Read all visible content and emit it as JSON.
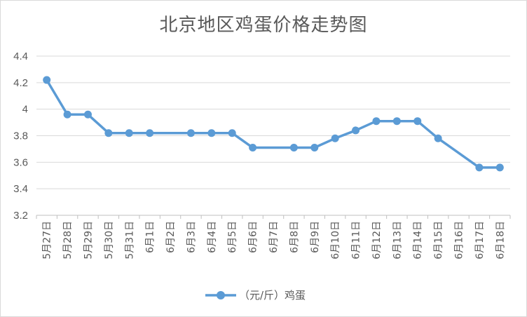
{
  "chart_data": {
    "type": "line",
    "title": "北京地区鸡蛋价格走势图",
    "categories": [
      "5月27日",
      "5月28日",
      "5月29日",
      "5月30日",
      "5月31日",
      "6月1日",
      "6月2日",
      "6月3日",
      "6月4日",
      "6月5日",
      "6月6日",
      "6月7日",
      "6月8日",
      "6月9日",
      "6月10日",
      "6月11日",
      "6月12日",
      "6月13日",
      "6月14日",
      "6月15日",
      "6月16日",
      "6月17日",
      "6月18日"
    ],
    "series": [
      {
        "name": "（元/斤）鸡蛋",
        "color": "#5b9bd5",
        "points": [
          {
            "x": "5月27日",
            "y": 4.22
          },
          {
            "x": "5月28日",
            "y": 3.96
          },
          {
            "x": "5月29日",
            "y": 3.96
          },
          {
            "x": "5月30日",
            "y": 3.82
          },
          {
            "x": "5月31日",
            "y": 3.82
          },
          {
            "x": "6月1日",
            "y": 3.82
          },
          {
            "x": "6月3日",
            "y": 3.82
          },
          {
            "x": "6月4日",
            "y": 3.82
          },
          {
            "x": "6月5日",
            "y": 3.82
          },
          {
            "x": "6月6日",
            "y": 3.71
          },
          {
            "x": "6月8日",
            "y": 3.71
          },
          {
            "x": "6月9日",
            "y": 3.71
          },
          {
            "x": "6月10日",
            "y": 3.78
          },
          {
            "x": "6月11日",
            "y": 3.84
          },
          {
            "x": "6月12日",
            "y": 3.91
          },
          {
            "x": "6月13日",
            "y": 3.91
          },
          {
            "x": "6月14日",
            "y": 3.91
          },
          {
            "x": "6月15日",
            "y": 3.78
          },
          {
            "x": "6月17日",
            "y": 3.56
          },
          {
            "x": "6月18日",
            "y": 3.56
          }
        ]
      }
    ],
    "ylim": [
      3.2,
      4.4
    ],
    "yticks": [
      "3.2",
      "3.4",
      "3.6",
      "3.8",
      "4",
      "4.2",
      "4.4"
    ],
    "grid": true,
    "legend": "bottom-center"
  }
}
